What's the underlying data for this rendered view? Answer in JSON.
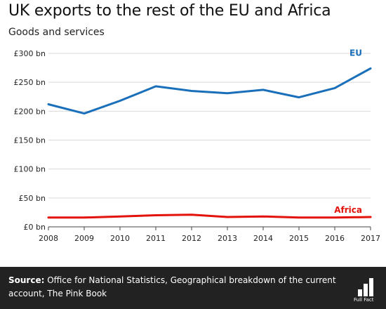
{
  "title": "UK exports to the rest of the  EU and Africa",
  "subtitle": "Goods and services",
  "footer": {
    "source_label": "Source:",
    "source_text": "Office for National Statistics, Geographical breakdown of the current account, The Pink Book",
    "logo_text": "Full Fact"
  },
  "colors": {
    "eu": "#1a6fba",
    "africa": "#e3120b",
    "grid": "#d9d9d9",
    "footer_bg": "#222222"
  },
  "chart_data": {
    "type": "line",
    "x": [
      "2008",
      "2009",
      "2010",
      "2011",
      "2012",
      "2013",
      "2014",
      "2015",
      "2016",
      "2017"
    ],
    "series": [
      {
        "name": "EU",
        "values": [
          212,
          196,
          218,
          243,
          235,
          231,
          237,
          224,
          240,
          274
        ]
      },
      {
        "name": "Africa",
        "values": [
          16,
          16,
          18,
          20,
          21,
          17,
          18,
          16,
          16,
          17
        ]
      }
    ],
    "yticks": [
      "£0 bn",
      "£50 bn",
      "£100 bn",
      "£150 bn",
      "£200 bn",
      "£250 bn",
      "£300 bn"
    ],
    "ytick_values": [
      0,
      50,
      100,
      150,
      200,
      250,
      300
    ],
    "ylim": [
      0,
      300
    ],
    "grid": true,
    "legend": "inline labels at line ends"
  }
}
